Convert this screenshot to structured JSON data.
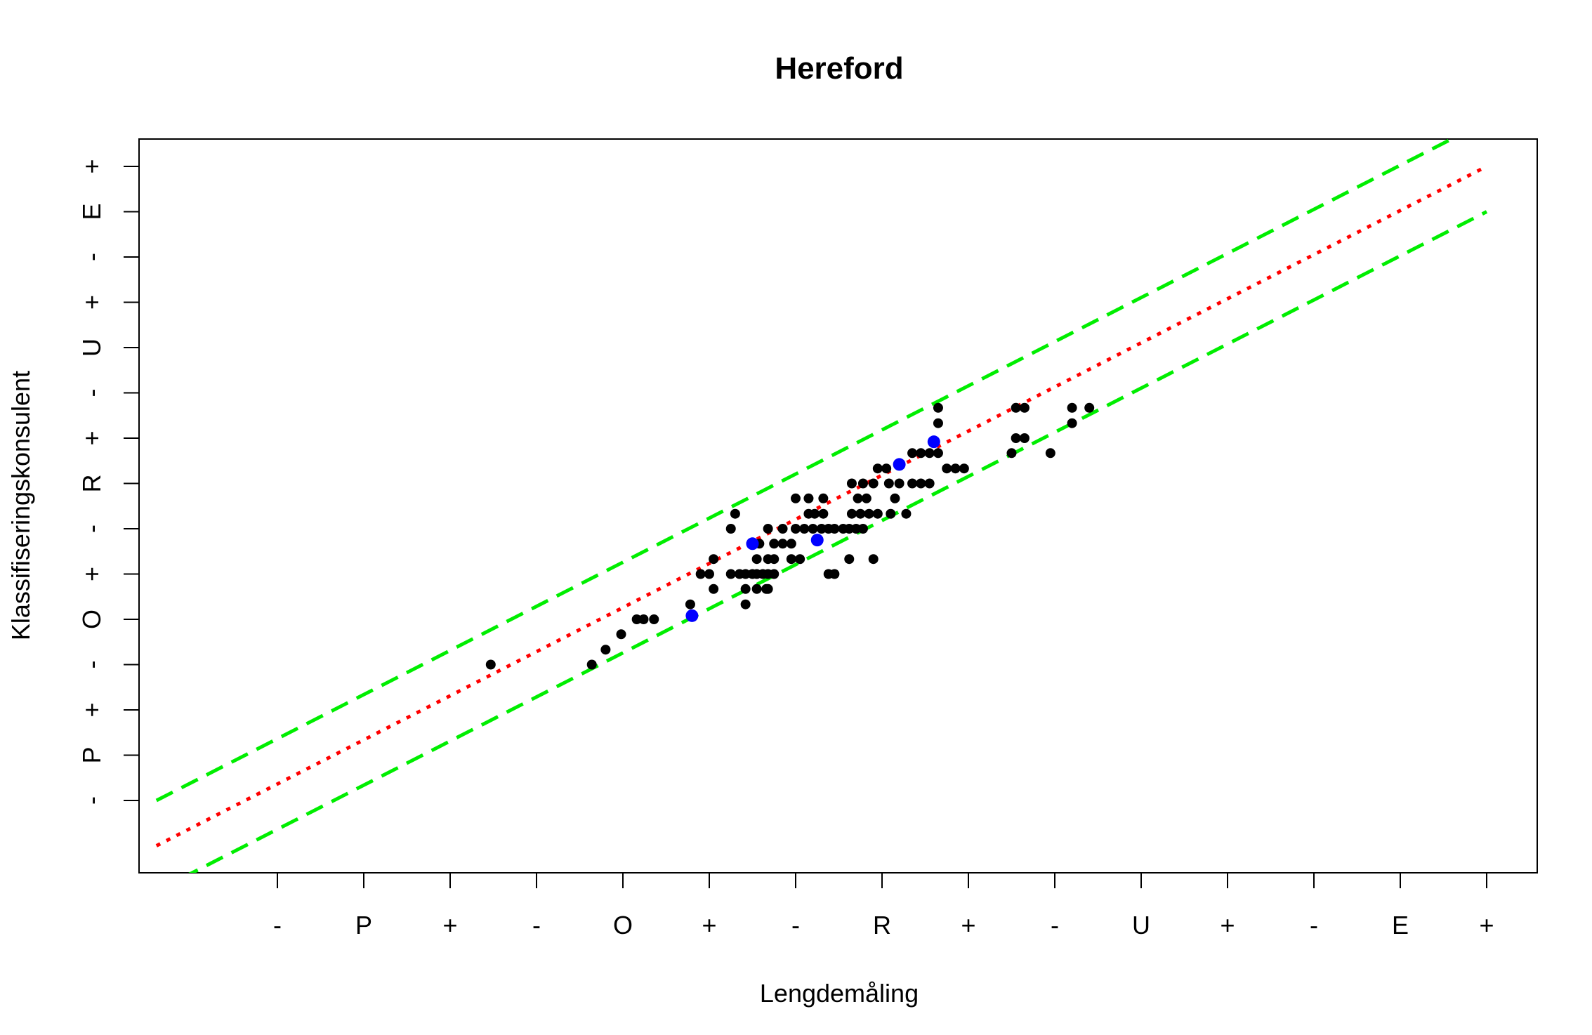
{
  "chart_data": {
    "type": "scatter",
    "title": "Hereford",
    "xlabel": "Lengdemåling",
    "ylabel": "Klassifiseringskonsulent",
    "x_ticks": [
      {
        "v": 1,
        "label": "-"
      },
      {
        "v": 2,
        "label": "P"
      },
      {
        "v": 3,
        "label": "+"
      },
      {
        "v": 4,
        "label": "-"
      },
      {
        "v": 5,
        "label": "O"
      },
      {
        "v": 6,
        "label": "+"
      },
      {
        "v": 7,
        "label": "-"
      },
      {
        "v": 8,
        "label": "R"
      },
      {
        "v": 9,
        "label": "+"
      },
      {
        "v": 10,
        "label": "-"
      },
      {
        "v": 11,
        "label": "U"
      },
      {
        "v": 12,
        "label": "+"
      },
      {
        "v": 13,
        "label": "-"
      },
      {
        "v": 14,
        "label": "E"
      },
      {
        "v": 15,
        "label": "+"
      }
    ],
    "y_ticks": [
      {
        "v": 1,
        "label": "-"
      },
      {
        "v": 2,
        "label": "P"
      },
      {
        "v": 3,
        "label": "+"
      },
      {
        "v": 4,
        "label": "-"
      },
      {
        "v": 5,
        "label": "O"
      },
      {
        "v": 6,
        "label": "+"
      },
      {
        "v": 7,
        "label": "-"
      },
      {
        "v": 8,
        "label": "R"
      },
      {
        "v": 9,
        "label": "+"
      },
      {
        "v": 10,
        "label": "-"
      },
      {
        "v": 11,
        "label": "U"
      },
      {
        "v": 12,
        "label": "+"
      },
      {
        "v": 13,
        "label": "-"
      },
      {
        "v": 14,
        "label": "E"
      },
      {
        "v": 15,
        "label": "+"
      }
    ],
    "xlim": [
      -0.6,
      15.6
    ],
    "ylim": [
      -0.6,
      15.6
    ],
    "grid": false,
    "lines": [
      {
        "style": "dotted",
        "color": "#ff0000",
        "x": [
          -0.4,
          15.0
        ],
        "y": [
          0.0,
          15.0
        ]
      },
      {
        "style": "dashed",
        "color": "#00ee00",
        "x": [
          -0.4,
          15.0
        ],
        "y": [
          1.0,
          16.0
        ]
      },
      {
        "style": "dashed",
        "color": "#00ee00",
        "x": [
          -0.4,
          15.0
        ],
        "y": [
          -1.0,
          14.0
        ]
      }
    ],
    "series": [
      {
        "color": "#000000",
        "points": [
          [
            3.47,
            4.0
          ],
          [
            4.64,
            4.0
          ],
          [
            4.8,
            4.33
          ],
          [
            4.98,
            4.67
          ],
          [
            5.16,
            5.0
          ],
          [
            5.24,
            5.0
          ],
          [
            5.36,
            5.0
          ],
          [
            5.78,
            5.33
          ],
          [
            5.9,
            6.0
          ],
          [
            6.0,
            6.0
          ],
          [
            6.05,
            6.33
          ],
          [
            6.05,
            5.67
          ],
          [
            6.25,
            7.0
          ],
          [
            6.3,
            7.33
          ],
          [
            6.25,
            6.0
          ],
          [
            6.35,
            6.0
          ],
          [
            6.42,
            6.0
          ],
          [
            6.5,
            6.0
          ],
          [
            6.55,
            6.0
          ],
          [
            6.62,
            6.0
          ],
          [
            6.68,
            6.0
          ],
          [
            6.75,
            6.0
          ],
          [
            6.42,
            5.67
          ],
          [
            6.55,
            5.67
          ],
          [
            6.66,
            5.67
          ],
          [
            6.42,
            5.33
          ],
          [
            6.55,
            6.33
          ],
          [
            6.68,
            6.33
          ],
          [
            6.75,
            6.33
          ],
          [
            6.58,
            6.67
          ],
          [
            6.75,
            6.67
          ],
          [
            6.85,
            6.67
          ],
          [
            6.95,
            6.67
          ],
          [
            6.68,
            7.0
          ],
          [
            6.85,
            7.0
          ],
          [
            6.68,
            5.67
          ],
          [
            6.95,
            6.33
          ],
          [
            7.05,
            6.33
          ],
          [
            7.0,
            7.67
          ],
          [
            7.15,
            7.33
          ],
          [
            7.22,
            7.33
          ],
          [
            7.32,
            7.33
          ],
          [
            7.15,
            7.67
          ],
          [
            7.32,
            7.67
          ],
          [
            7.0,
            7.0
          ],
          [
            7.1,
            7.0
          ],
          [
            7.2,
            7.0
          ],
          [
            7.3,
            7.0
          ],
          [
            7.38,
            7.0
          ],
          [
            7.45,
            7.0
          ],
          [
            7.55,
            7.0
          ],
          [
            7.62,
            7.0
          ],
          [
            7.7,
            7.0
          ],
          [
            7.38,
            6.0
          ],
          [
            7.45,
            6.0
          ],
          [
            7.62,
            6.33
          ],
          [
            7.9,
            6.33
          ],
          [
            7.65,
            7.33
          ],
          [
            7.75,
            7.33
          ],
          [
            7.85,
            7.33
          ],
          [
            7.95,
            7.33
          ],
          [
            7.72,
            7.67
          ],
          [
            7.82,
            7.67
          ],
          [
            7.65,
            8.0
          ],
          [
            7.78,
            8.0
          ],
          [
            7.9,
            8.0
          ],
          [
            7.95,
            8.33
          ],
          [
            8.05,
            8.33
          ],
          [
            7.78,
            7.0
          ],
          [
            8.15,
            7.67
          ],
          [
            8.1,
            7.33
          ],
          [
            8.28,
            7.33
          ],
          [
            8.08,
            8.0
          ],
          [
            8.2,
            8.0
          ],
          [
            8.35,
            8.0
          ],
          [
            8.45,
            8.0
          ],
          [
            8.55,
            8.0
          ],
          [
            8.35,
            8.67
          ],
          [
            8.45,
            8.67
          ],
          [
            8.55,
            8.67
          ],
          [
            8.65,
            8.67
          ],
          [
            8.75,
            8.33
          ],
          [
            8.85,
            8.33
          ],
          [
            8.95,
            8.33
          ],
          [
            8.65,
            9.33
          ],
          [
            8.65,
            9.67
          ],
          [
            9.55,
            9.67
          ],
          [
            9.65,
            9.67
          ],
          [
            9.55,
            9.0
          ],
          [
            9.65,
            9.0
          ],
          [
            9.5,
            8.67
          ],
          [
            9.95,
            8.67
          ],
          [
            10.2,
            9.33
          ],
          [
            10.2,
            9.67
          ],
          [
            10.4,
            9.67
          ]
        ]
      },
      {
        "color": "#0000ff",
        "points": [
          [
            5.8,
            5.08
          ],
          [
            6.5,
            6.67
          ],
          [
            7.25,
            6.75
          ],
          [
            8.2,
            8.42
          ],
          [
            8.6,
            8.92
          ]
        ]
      }
    ]
  }
}
